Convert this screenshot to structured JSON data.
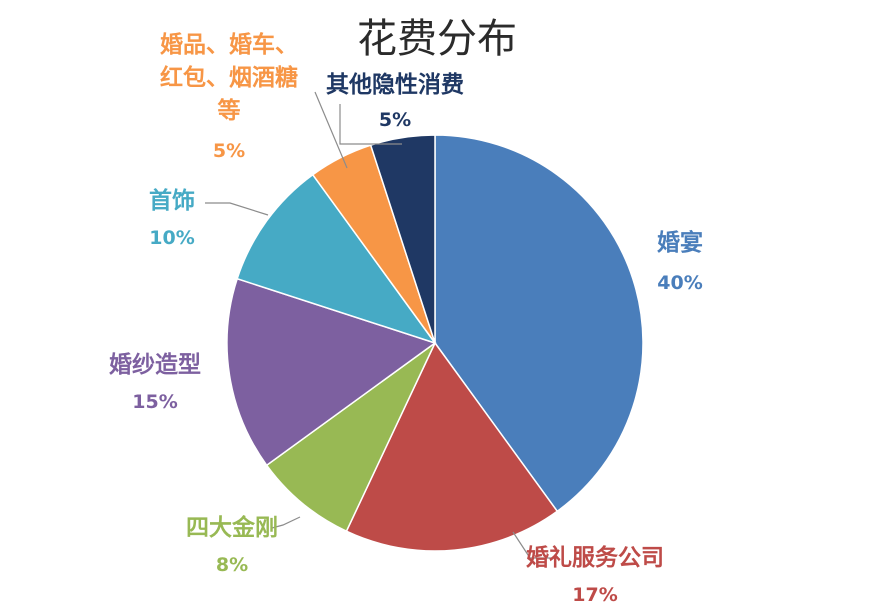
{
  "chart_data": {
    "type": "pie",
    "title": "花费分布",
    "start_angle_deg": 0,
    "direction": "clockwise",
    "slices": [
      {
        "label": "婚宴",
        "value": 40,
        "value_label": "40%",
        "color": "#4a7ebb"
      },
      {
        "label": "婚礼服务公司",
        "value": 17,
        "value_label": "17%",
        "color": "#be4b48"
      },
      {
        "label": "四大金刚",
        "value": 8,
        "value_label": "8%",
        "color": "#98b954"
      },
      {
        "label": "婚纱造型",
        "value": 15,
        "value_label": "15%",
        "color": "#7d60a0"
      },
      {
        "label": "首饰",
        "value": 10,
        "value_label": "10%",
        "color": "#46aac5"
      },
      {
        "label": "婚品、婚车、红包、烟酒糖等",
        "label_lines": [
          "婚品、婚车、",
          "红包、烟酒糖",
          "等"
        ],
        "value": 5,
        "value_label": "5%",
        "color": "#f79646"
      },
      {
        "label": "其他隐性消费",
        "value": 5,
        "value_label": "5%",
        "color": "#1f3864"
      }
    ],
    "label_colors": [
      "#4a7ebb",
      "#be4b48",
      "#98b954",
      "#7d60a0",
      "#46aac5",
      "#f79646",
      "#1f3864"
    ]
  }
}
